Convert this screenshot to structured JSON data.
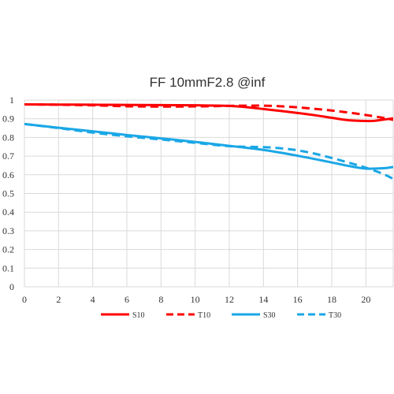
{
  "chart_data": {
    "type": "line",
    "title": "FF 10mmF2.8 @inf",
    "xlabel": "",
    "ylabel": "",
    "xlim": [
      0,
      21.6
    ],
    "ylim": [
      0,
      1
    ],
    "grid": true,
    "legend_position": "bottom",
    "x_ticks": [
      "0",
      "2",
      "4",
      "6",
      "8",
      "10",
      "12",
      "14",
      "16",
      "18",
      "20"
    ],
    "y_ticks": [
      "0",
      "0.1",
      "0.2",
      "0.3",
      "0.4",
      "0.5",
      "0.6",
      "0.7",
      "0.8",
      "0.9",
      "1"
    ],
    "series": [
      {
        "name": "S10",
        "color": "#ff0000",
        "dash": "solid",
        "x": [
          0,
          2,
          4,
          6,
          8,
          10,
          12,
          13,
          14,
          15,
          16,
          17,
          18,
          19,
          20,
          20.5,
          21,
          21.6
        ],
        "y": [
          0.977,
          0.976,
          0.975,
          0.974,
          0.973,
          0.972,
          0.969,
          0.962,
          0.952,
          0.942,
          0.931,
          0.919,
          0.905,
          0.892,
          0.888,
          0.889,
          0.895,
          0.902
        ]
      },
      {
        "name": "T10",
        "color": "#ff0000",
        "dash": "dashed",
        "x": [
          0,
          2,
          4,
          6,
          8,
          10,
          12,
          13,
          14,
          15,
          16,
          17,
          18,
          19,
          20,
          21,
          21.6
        ],
        "y": [
          0.977,
          0.975,
          0.972,
          0.967,
          0.965,
          0.966,
          0.969,
          0.97,
          0.97,
          0.967,
          0.961,
          0.953,
          0.944,
          0.933,
          0.92,
          0.905,
          0.894
        ]
      },
      {
        "name": "S30",
        "color": "#1aa7e6",
        "dash": "solid",
        "x": [
          0,
          2,
          4,
          6,
          8,
          10,
          12,
          14,
          16,
          18,
          19,
          20,
          21,
          21.6
        ],
        "y": [
          0.872,
          0.852,
          0.833,
          0.813,
          0.795,
          0.776,
          0.755,
          0.733,
          0.702,
          0.666,
          0.647,
          0.633,
          0.635,
          0.642
        ]
      },
      {
        "name": "T30",
        "color": "#1aa7e6",
        "dash": "dashed",
        "x": [
          0,
          2,
          4,
          6,
          8,
          10,
          12,
          14,
          15,
          16,
          17,
          18,
          19,
          20,
          21,
          21.6
        ],
        "y": [
          0.872,
          0.85,
          0.826,
          0.806,
          0.789,
          0.771,
          0.753,
          0.748,
          0.742,
          0.731,
          0.713,
          0.69,
          0.665,
          0.638,
          0.605,
          0.578
        ]
      }
    ]
  }
}
